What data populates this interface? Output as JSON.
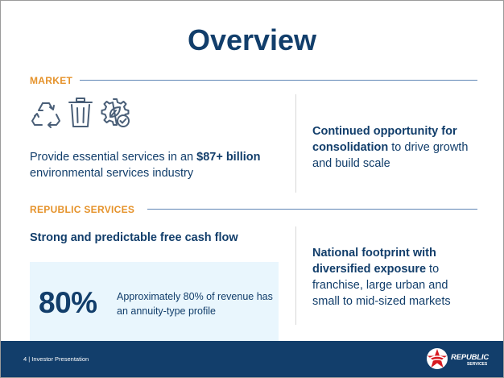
{
  "slide": {
    "title": "Overview",
    "colors": {
      "navy": "#123e6b",
      "orange": "#e5922a",
      "light_blue_panel": "#e9f6fd",
      "logo_red": "#d71920"
    },
    "market": {
      "label": "MARKET",
      "icons": [
        "recycle-icon",
        "trash-bin-icon",
        "leaf-gear-check-icon"
      ],
      "left_text": {
        "before": "Provide essential services in an ",
        "emphasis": "$87+ billion",
        "after": "environmental services industry"
      },
      "right_text": {
        "emphasis": "Continued opportunity for consolidation",
        "after": " to drive growth and build scale"
      }
    },
    "republic": {
      "label": "REPUBLIC SERVICES",
      "subhead": "Strong and predictable free cash flow",
      "stat_value": "80%",
      "stat_description": "Approximately 80% of revenue has an annuity-type profile",
      "right_text": {
        "emphasis": "National footprint with diversified exposure",
        "after": " to franchise, large urban and small to mid-sized markets"
      }
    },
    "footer": {
      "text": "4 | Investor Presentation",
      "logo": {
        "name": "REPUBLIC",
        "sub": "SERVICES",
        "icon": "republic-star-logo-icon"
      }
    }
  }
}
